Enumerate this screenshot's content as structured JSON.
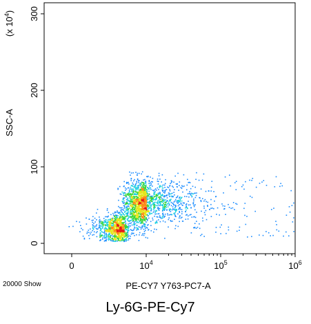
{
  "chart_data": {
    "type": "scatter",
    "subtype": "flow-cytometry density dot plot",
    "title": "",
    "caption": "Ly-6G-PE-Cy7",
    "xlabel": "PE-CY7 Y763-PC7-A",
    "ylabel": "SSC-A",
    "y_multiplier": {
      "prefix": "(x 10",
      "exponent": "4",
      "suffix": ")"
    },
    "event_count_label": "20000 Show",
    "x_scale": "biexponential",
    "x_ticks": [
      {
        "value": 0,
        "base": "0",
        "exp": ""
      },
      {
        "value": 10000,
        "base": "10",
        "exp": "4"
      },
      {
        "value": 100000,
        "base": "10",
        "exp": "5"
      },
      {
        "value": 1000000,
        "base": "10",
        "exp": "6"
      }
    ],
    "y_ticks": [
      {
        "value": 0,
        "label": "0"
      },
      {
        "value": 100,
        "label": "100"
      },
      {
        "value": 200,
        "label": "200"
      },
      {
        "value": 300,
        "label": "300"
      }
    ],
    "ylim": [
      0,
      310
    ],
    "density_colors": [
      "#1f1fd6",
      "#1a8cff",
      "#19d0e0",
      "#39d639",
      "#e6e619",
      "#ff8c19",
      "#e61919"
    ],
    "populations": [
      {
        "name": "",
        "x": 0,
        "y": 20,
        "sx": 0.03,
        "sy": 9,
        "count": 950
      },
      {
        "name": "",
        "x": 10000,
        "y": 55,
        "sx": 0.35,
        "sy": 14,
        "count": 1100
      },
      {
        "name": "",
        "x": 2500,
        "y": 48,
        "sx": 0.4,
        "sy": 16,
        "count": 750
      }
    ],
    "grid": false
  }
}
